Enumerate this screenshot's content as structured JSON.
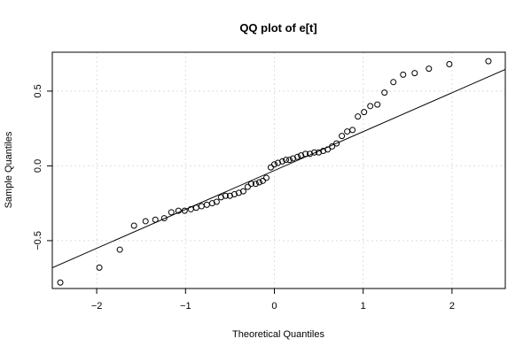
{
  "chart_data": {
    "type": "scatter",
    "title": "QQ plot of e[t]",
    "xlabel": "Theoretical Quantiles",
    "ylabel": "Sample Quantiles",
    "xlim": [
      -2.5,
      2.6
    ],
    "ylim": [
      -0.82,
      0.76
    ],
    "x_ticks": [
      -2,
      -1,
      0,
      1,
      2
    ],
    "x_tick_labels": [
      "−2",
      "−1",
      "0",
      "1",
      "2"
    ],
    "y_ticks": [
      -0.5,
      0.0,
      0.5
    ],
    "y_tick_labels": [
      "−0.5",
      "0.0",
      "0.5"
    ],
    "grid": true,
    "reference_line": {
      "intercept": -0.031,
      "slope": 0.26
    },
    "points": {
      "x": [
        -2.41,
        -1.97,
        -1.74,
        -1.58,
        -1.45,
        -1.34,
        -1.24,
        -1.16,
        -1.08,
        -1.01,
        -0.94,
        -0.88,
        -0.82,
        -0.76,
        -0.7,
        -0.65,
        -0.6,
        -0.55,
        -0.5,
        -0.45,
        -0.4,
        -0.35,
        -0.3,
        -0.26,
        -0.21,
        -0.17,
        -0.13,
        -0.09,
        -0.04,
        0.0,
        0.04,
        0.09,
        0.13,
        0.17,
        0.21,
        0.26,
        0.3,
        0.35,
        0.4,
        0.45,
        0.5,
        0.55,
        0.6,
        0.65,
        0.7,
        0.76,
        0.82,
        0.88,
        0.94,
        1.01,
        1.08,
        1.16,
        1.24,
        1.34,
        1.45,
        1.58,
        1.74,
        1.97,
        2.41
      ],
      "y": [
        -0.78,
        -0.68,
        -0.56,
        -0.4,
        -0.37,
        -0.36,
        -0.35,
        -0.31,
        -0.3,
        -0.3,
        -0.29,
        -0.28,
        -0.27,
        -0.26,
        -0.25,
        -0.24,
        -0.21,
        -0.2,
        -0.2,
        -0.19,
        -0.18,
        -0.17,
        -0.14,
        -0.12,
        -0.12,
        -0.11,
        -0.1,
        -0.08,
        -0.01,
        0.01,
        0.02,
        0.03,
        0.04,
        0.04,
        0.05,
        0.06,
        0.07,
        0.08,
        0.08,
        0.09,
        0.09,
        0.1,
        0.11,
        0.13,
        0.15,
        0.2,
        0.23,
        0.24,
        0.33,
        0.36,
        0.4,
        0.41,
        0.49,
        0.56,
        0.61,
        0.62,
        0.65,
        0.68,
        0.7
      ]
    }
  }
}
